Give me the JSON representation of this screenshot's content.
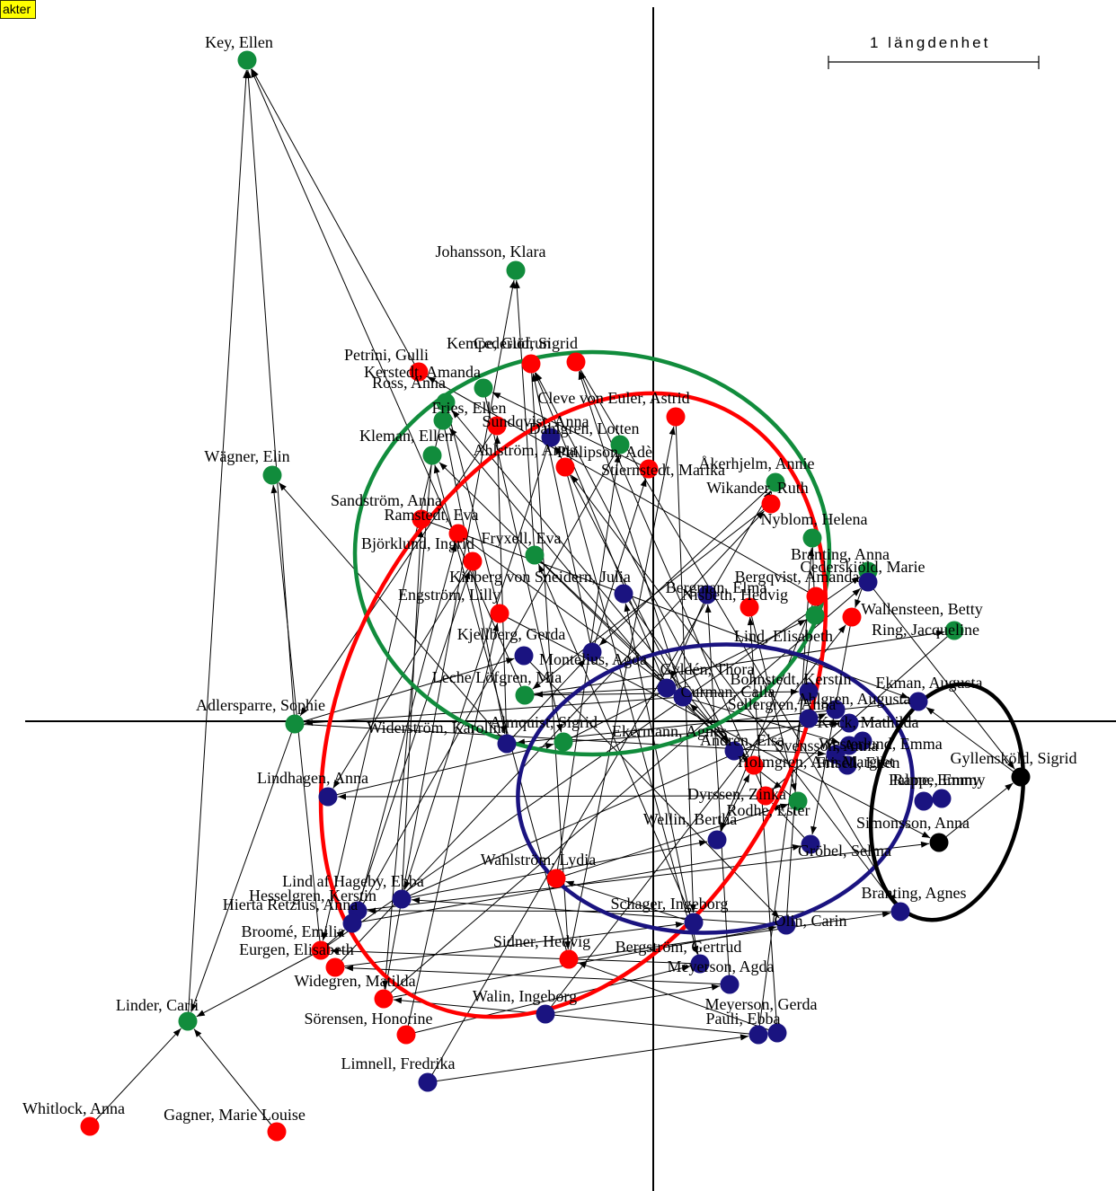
{
  "tag_label": "akter",
  "scale_label": "1 längdenhet",
  "colors": {
    "green": "#118c3c",
    "red": "#ff0000",
    "blue": "#1a1380",
    "black": "#000000"
  },
  "ellipses": [
    {
      "name": "green-cluster",
      "color": "green"
    },
    {
      "name": "red-cluster",
      "color": "red"
    },
    {
      "name": "blue-cluster",
      "color": "blue"
    },
    {
      "name": "black-cluster",
      "color": "black"
    }
  ],
  "nodes": [
    {
      "label": "Key, Ellen",
      "color": "green"
    },
    {
      "label": "Johansson, Klara",
      "color": "green"
    },
    {
      "label": "Wägner, Elin",
      "color": "green"
    },
    {
      "label": "Petrini, Gulli",
      "color": "red"
    },
    {
      "label": "Kempe, Gudrun",
      "color": "red"
    },
    {
      "label": "Cederlöf, Sigrid",
      "color": "red"
    },
    {
      "label": "Kerstedt, Amanda",
      "color": "green"
    },
    {
      "label": "Ross, Anna",
      "color": "green"
    },
    {
      "label": "Fries, Ellen",
      "color": "green"
    },
    {
      "label": "Cleve von Euler, Astrid",
      "color": "red"
    },
    {
      "label": "Sundqvist, Anna",
      "color": "red"
    },
    {
      "label": "Dahlgren, Lotten",
      "color": "blue"
    },
    {
      "label": "Philipson, Adè",
      "color": "green"
    },
    {
      "label": "Kleman, Ellen",
      "color": "green"
    },
    {
      "label": "Ahlström, Anna",
      "color": "red"
    },
    {
      "label": "Stiernstedt, Marika",
      "color": "red"
    },
    {
      "label": "Åkerhjelm, Annie",
      "color": "green"
    },
    {
      "label": "Wikander, Ruth",
      "color": "red"
    },
    {
      "label": "Sandström, Anna",
      "color": "red"
    },
    {
      "label": "Ramstedt, Eva",
      "color": "red"
    },
    {
      "label": "Björklund, Ingrid",
      "color": "red"
    },
    {
      "label": "Fryxell, Eva",
      "color": "green"
    },
    {
      "label": "Nyblom, Helena",
      "color": "green"
    },
    {
      "label": "Branting, Anna",
      "color": "green"
    },
    {
      "label": "Cederskiöld, Marie",
      "color": "blue"
    },
    {
      "label": "Kinberg von Sneidern, Julia",
      "color": "blue"
    },
    {
      "label": "Bergman, Elma",
      "color": "blue"
    },
    {
      "label": "Bergqvist, Amanda",
      "color": "red"
    },
    {
      "label": "Nisbeth, Hedvig",
      "color": "red"
    },
    {
      "label": "Engström, Lilly",
      "color": "red"
    },
    {
      "label": "Wallensteen, Betty",
      "color": "red"
    },
    {
      "label": "Ring, Jacqueline",
      "color": "green"
    },
    {
      "label": "Kjellberg, Gerda",
      "color": "blue"
    },
    {
      "label": "Montelius, Agda",
      "color": "blue"
    },
    {
      "label": "Lind, Elisabeth",
      "color": "green"
    },
    {
      "label": "Leche Löfgren, Mia",
      "color": "green"
    },
    {
      "label": "Adlersparre, Sophie",
      "color": "green"
    },
    {
      "label": "Widerström, Karolina",
      "color": "blue"
    },
    {
      "label": "Almquist, Sigrid",
      "color": "green"
    },
    {
      "label": "Gyldén, Thora",
      "color": "blue"
    },
    {
      "label": "Curman, Calla",
      "color": "blue"
    },
    {
      "label": "Ekman, Augusta",
      "color": "blue"
    },
    {
      "label": "Lindhagen, Anna",
      "color": "blue"
    },
    {
      "label": "Ekermann, Agnes",
      "color": "blue"
    },
    {
      "label": "Andrén, Elsa",
      "color": "red"
    },
    {
      "label": "Gyllensköld, Sigrid",
      "color": "black"
    },
    {
      "label": "Dyrssen, Zinka",
      "color": "red"
    },
    {
      "label": "Rodhe, Ester",
      "color": "green"
    },
    {
      "label": "Wellin, Bertha",
      "color": "blue"
    },
    {
      "label": "Simonsson, Anna",
      "color": "black"
    },
    {
      "label": "Gröbel, Selma",
      "color": "blue"
    },
    {
      "label": "Wahlström, Lydia",
      "color": "red"
    },
    {
      "label": "Lind af Hageby, Ebba",
      "color": "blue"
    },
    {
      "label": "Hesselgren, Kerstin",
      "color": "blue"
    },
    {
      "label": "Hierta Retzius, Anna",
      "color": "blue"
    },
    {
      "label": "Schager, Ingeborg",
      "color": "blue"
    },
    {
      "label": "Olin, Carin",
      "color": "blue"
    },
    {
      "label": "Branting, Agnes",
      "color": "blue"
    },
    {
      "label": "Broomé, Emilia",
      "color": "red"
    },
    {
      "label": "Eurgen, Elisabeth",
      "color": "red"
    },
    {
      "label": "Widegren, Matilda",
      "color": "red"
    },
    {
      "label": "Sidner, Hedvig",
      "color": "red"
    },
    {
      "label": "Bergström, Gertrud",
      "color": "blue"
    },
    {
      "label": "Meyerson, Agda",
      "color": "blue"
    },
    {
      "label": "Meyerson, Gerda",
      "color": "blue"
    },
    {
      "label": "Pauli, Ebba",
      "color": "blue"
    },
    {
      "label": "Linder, Carli",
      "color": "green"
    },
    {
      "label": "Sörensen, Honorine",
      "color": "red"
    },
    {
      "label": "Walin, Ingeborg",
      "color": "blue"
    },
    {
      "label": "Limnell, Fredrika",
      "color": "blue"
    },
    {
      "label": "Whitlock, Anna",
      "color": "red"
    },
    {
      "label": "Gagner, Marie Louise",
      "color": "red"
    },
    {
      "label": "Sellergren, Anna",
      "color": "blue"
    },
    {
      "label": "Palme, Emmy",
      "color": "blue"
    },
    {
      "label": "Rappe, Emmy",
      "color": "blue"
    },
    {
      "label": "Svensson, Anna",
      "color": "blue"
    },
    {
      "label": "Westerlund, Emma",
      "color": "blue"
    },
    {
      "label": "Holmgren, Ann Margret",
      "color": "blue"
    },
    {
      "label": "Bohnstedt, Kerstin",
      "color": "blue"
    },
    {
      "label": "Ahlgren, Augusta",
      "color": "blue"
    },
    {
      "label": "Kock, Mathilda",
      "color": "blue"
    },
    {
      "label": "Frisell, Ellen",
      "color": "blue"
    }
  ]
}
